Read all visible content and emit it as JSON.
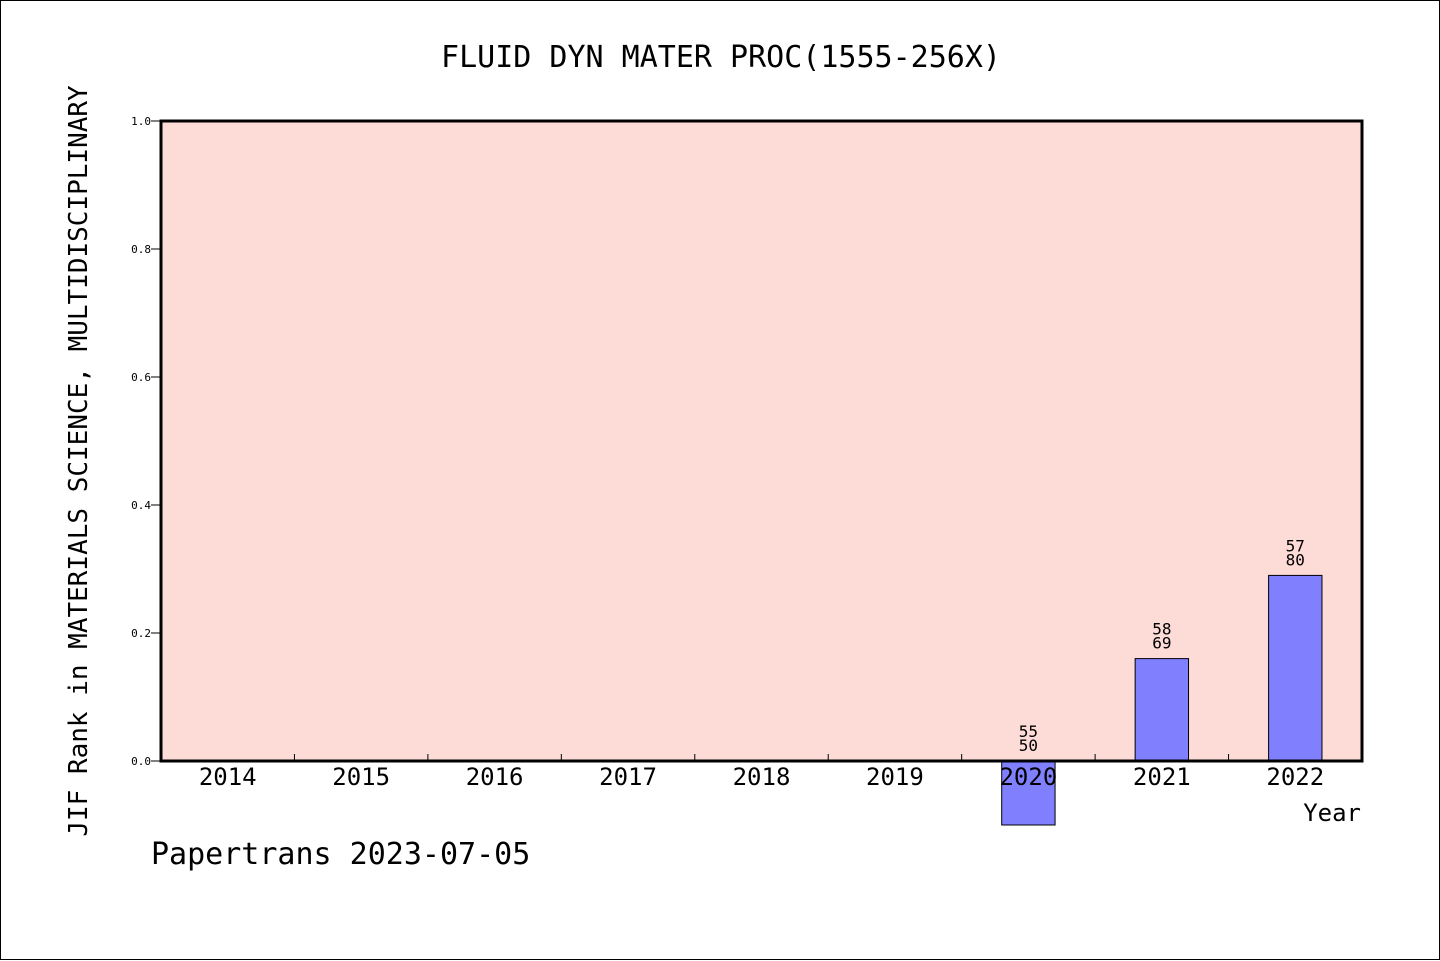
{
  "chart_data": {
    "type": "bar",
    "title": "FLUID DYN MATER PROC(1555-256X)",
    "ylabel": "JIF Rank in MATERIALS SCIENCE, MULTIDISCIPLINARY",
    "xlabel": "Year",
    "categories": [
      "2014",
      "2015",
      "2016",
      "2017",
      "2018",
      "2019",
      "2020",
      "2021",
      "2022"
    ],
    "values": [
      null,
      null,
      null,
      null,
      null,
      null,
      -0.1,
      0.16,
      0.29
    ],
    "bar_labels": [
      null,
      null,
      null,
      null,
      null,
      null,
      [
        "55",
        "50"
      ],
      [
        "58",
        "69"
      ],
      [
        "57",
        "80"
      ]
    ],
    "ylim": [
      0.0,
      1.0
    ],
    "yticks": [
      "0.0",
      "0.2",
      "0.4",
      "0.6",
      "0.8",
      "1.0"
    ],
    "grid": false,
    "colors": {
      "plot_background": "#fddbd7",
      "bar_fill": "#8080ff",
      "bar_edge": "#000000"
    }
  },
  "footer": "Papertrans 2023-07-05"
}
